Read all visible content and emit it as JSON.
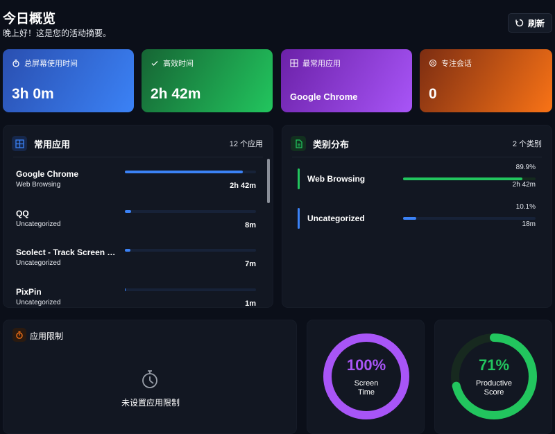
{
  "header": {
    "title": "今日概览",
    "subtitle": "晚上好！这是您的活动摘要。",
    "refresh_label": "刷新"
  },
  "stats": [
    {
      "label": "总屏幕使用时间",
      "value": "3h 0m",
      "icon": "stopwatch-icon",
      "from": "#2a4fb0",
      "to": "#3b82f6"
    },
    {
      "label": "高效时间",
      "value": "2h 42m",
      "icon": "check-icon",
      "from": "#166534",
      "to": "#22c55e"
    },
    {
      "label": "最常用应用",
      "value": "Google Chrome",
      "icon": "apps-icon",
      "from": "#6b21a8",
      "to": "#a855f7"
    },
    {
      "label": "专注会话",
      "value": "0",
      "icon": "target-icon",
      "from": "#7c2d12",
      "to": "#f97316"
    }
  ],
  "apps_panel": {
    "title": "常用应用",
    "count": "12 个应用",
    "items": [
      {
        "name": "Google Chrome",
        "category": "Web Browsing",
        "time": "2h 42m",
        "percent": 90
      },
      {
        "name": "QQ",
        "category": "Uncategorized",
        "time": "8m",
        "percent": 5
      },
      {
        "name": "Scolect - Track Screen Time",
        "category": "Uncategorized",
        "time": "7m",
        "percent": 4
      },
      {
        "name": "PixPin",
        "category": "Uncategorized",
        "time": "1m",
        "percent": 0.6
      }
    ]
  },
  "category_panel": {
    "title": "类别分布",
    "count": "2 个类别",
    "items": [
      {
        "name": "Web Browsing",
        "percent_label": "89.9%",
        "time": "2h 42m",
        "percent": 89.9,
        "color": "#22c55e"
      },
      {
        "name": "Uncategorized",
        "percent_label": "10.1%",
        "time": "18m",
        "percent": 10.1,
        "color": "#3b82f6"
      }
    ]
  },
  "limits_panel": {
    "title": "应用限制",
    "empty_text": "未设置应用限制"
  },
  "rings": [
    {
      "value": "100%",
      "percent": 100,
      "label1": "Screen",
      "label2": "Time",
      "color": "#a855f7",
      "track": "#2a1d3d"
    },
    {
      "value": "71%",
      "percent": 71,
      "label1": "Productive",
      "label2": "Score",
      "color": "#22c55e",
      "track": "#17291f"
    }
  ]
}
